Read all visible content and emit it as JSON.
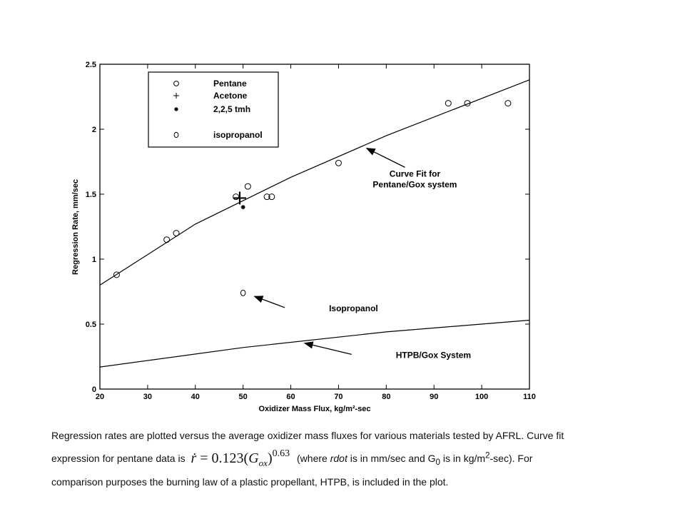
{
  "chart_data": {
    "type": "scatter",
    "xlabel": "Oxidizer Mass Flux, kg/m²-sec",
    "ylabel": "Regression Rate, mm/sec",
    "xlim": [
      20,
      110
    ],
    "ylim": [
      0,
      2.5
    ],
    "x_ticks": [
      "20",
      "30",
      "40",
      "50",
      "60",
      "70",
      "80",
      "90",
      "100",
      "110"
    ],
    "y_ticks": [
      "0",
      "0.5",
      "1",
      "1.5",
      "2",
      "2.5"
    ],
    "x_tick_values": [
      20,
      30,
      40,
      50,
      60,
      70,
      80,
      90,
      100,
      110
    ],
    "y_tick_values": [
      0,
      0.5,
      1,
      1.5,
      2,
      2.5
    ],
    "grid": false,
    "legend_position": "top-left",
    "series": [
      {
        "name": "Pentane",
        "marker": "circle",
        "points": [
          [
            23.5,
            0.88
          ],
          [
            34,
            1.15
          ],
          [
            36,
            1.2
          ],
          [
            48.5,
            1.48
          ],
          [
            51,
            1.56
          ],
          [
            55,
            1.48
          ],
          [
            56,
            1.48
          ],
          [
            70,
            1.74
          ],
          [
            93,
            2.2
          ],
          [
            97,
            2.2
          ],
          [
            105.5,
            2.2
          ]
        ]
      },
      {
        "name": "Acetone",
        "marker": "plus",
        "points": [
          [
            49.3,
            1.47
          ]
        ]
      },
      {
        "name": "2,2,5 tmh",
        "marker": "star",
        "points": [
          [
            50,
            1.4
          ]
        ]
      },
      {
        "name": "Isopropanol",
        "marker": "diamond",
        "points": [
          [
            50,
            0.74
          ]
        ]
      }
    ],
    "lines": [
      {
        "name": "Curve Fit for Pentane/Gox system",
        "points": [
          [
            20,
            0.8
          ],
          [
            40,
            1.27
          ],
          [
            60,
            1.63
          ],
          [
            80,
            1.95
          ],
          [
            110,
            2.38
          ]
        ]
      },
      {
        "name": "HTPB/Gox System",
        "points": [
          [
            20,
            0.17
          ],
          [
            50,
            0.32
          ],
          [
            80,
            0.44
          ],
          [
            110,
            0.53
          ]
        ]
      }
    ],
    "annotations": [
      {
        "text_lines": [
          "Curve Fit for",
          "Pentane/Gox system"
        ],
        "arrow_to": [
          75,
          1.87
        ],
        "text_at": [
          86,
          1.52
        ]
      },
      {
        "text_lines": [
          "Isopropanol"
        ],
        "arrow_to": [
          51.5,
          0.73
        ],
        "text_at": [
          68,
          0.6
        ]
      },
      {
        "text_lines": [
          "HTPB/Gox System"
        ],
        "arrow_to": [
          62,
          0.37
        ],
        "text_at": [
          82,
          0.24
        ]
      }
    ]
  },
  "legend": {
    "items": [
      {
        "label": "Pentane",
        "symbol": "o"
      },
      {
        "label": "Acetone",
        "symbol": "+"
      },
      {
        "label": "2,2,5 tmh",
        "symbol": "*"
      },
      {
        "label": "isopropanol",
        "symbol": "◇"
      }
    ]
  },
  "caption": {
    "line1": "Regression rates are plotted versus the average oxidizer mass fluxes for various materials tested by AFRL. Curve fit",
    "line2_prefix": "expression for pentane data is",
    "formula_lhs": "ṙ",
    "formula_eq": " = 0.123(",
    "formula_g": "G",
    "formula_sub": "ox",
    "formula_close": ")",
    "formula_exp": "0.63",
    "line2_suffix_a": "(where ",
    "line2_italic": "rdot",
    "line2_suffix_b": " is in mm/sec and G",
    "line2_sub": "0",
    "line2_suffix_c": " is in kg/m",
    "line2_sup": "2",
    "line2_suffix_d": "-sec). For",
    "line3": "comparison purposes the burning law of a plastic propellant, HTPB, is included in the plot."
  }
}
